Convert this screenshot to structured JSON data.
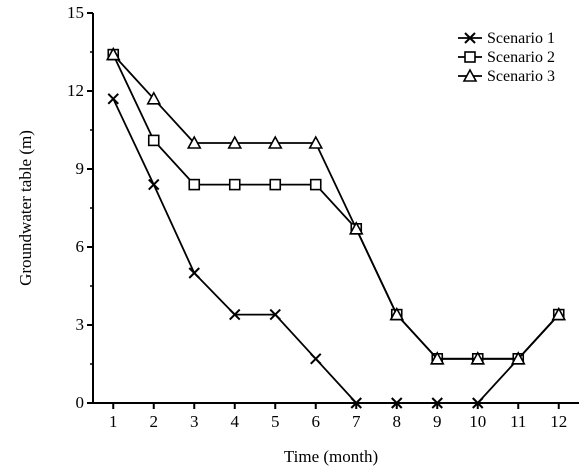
{
  "chart_data": {
    "type": "line",
    "xlabel": "Time (month)",
    "ylabel": "Groundwater table (m)",
    "x": [
      1,
      2,
      3,
      4,
      5,
      6,
      7,
      8,
      9,
      10,
      11,
      12
    ],
    "xlim": [
      0.5,
      12.5
    ],
    "ylim": [
      0,
      15
    ],
    "yticks": [
      0,
      3,
      6,
      9,
      12,
      15
    ],
    "legend_position": "top-right",
    "grid": false,
    "series": [
      {
        "name": "Scenario 1",
        "marker": "x",
        "values": [
          11.7,
          8.4,
          5.0,
          3.4,
          3.4,
          1.7,
          0.0,
          0.0,
          0.0,
          0.0,
          1.7,
          3.4
        ]
      },
      {
        "name": "Scenario 2",
        "marker": "square",
        "values": [
          13.4,
          10.1,
          8.4,
          8.4,
          8.4,
          8.4,
          6.7,
          3.4,
          1.7,
          1.7,
          1.7,
          3.4
        ]
      },
      {
        "name": "Scenario 3",
        "marker": "triangle",
        "values": [
          13.4,
          11.7,
          10.0,
          10.0,
          10.0,
          10.0,
          6.7,
          3.4,
          1.7,
          1.7,
          1.7,
          3.4
        ]
      }
    ]
  }
}
